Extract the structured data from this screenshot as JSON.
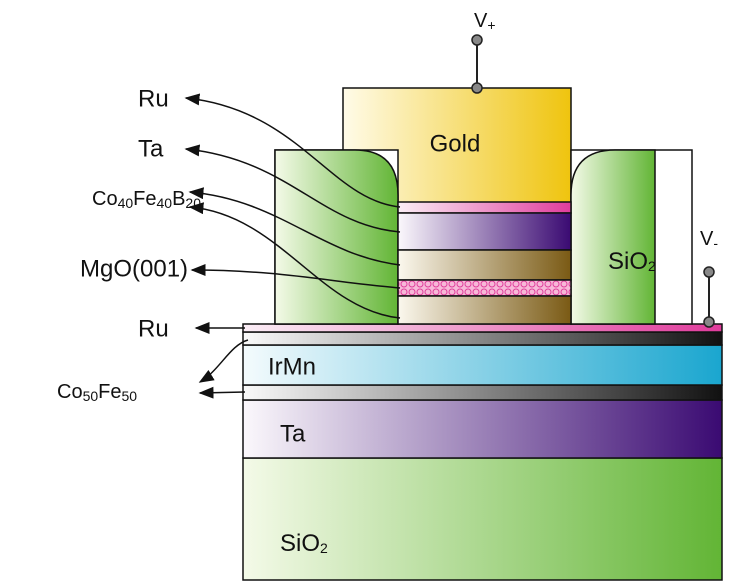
{
  "top_contact": [
    "V",
    "+"
  ],
  "bottom_contact": [
    "V",
    "-"
  ],
  "gold": "Gold",
  "side_oxide": [
    "SiO",
    "2"
  ],
  "irmn": "IrMn",
  "ta_bottom": "Ta",
  "substrate": [
    "SiO",
    "2"
  ],
  "left_labels": {
    "ru_top": "Ru",
    "ta_top": "Ta",
    "cofeb": [
      "Co",
      "40",
      "Fe",
      "40",
      "B",
      "20"
    ],
    "mgo": "MgO(001)",
    "ru_bottom": "Ru",
    "cofe": [
      "Co",
      "50",
      "Fe",
      "50"
    ]
  }
}
